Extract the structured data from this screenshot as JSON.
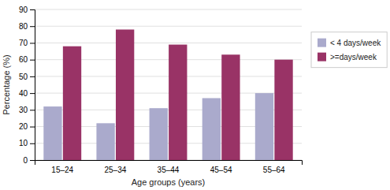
{
  "chart_data": {
    "type": "bar",
    "xlabel": "Age groups (years)",
    "ylabel": "Percentage (%)",
    "categories": [
      "15–24",
      "25–34",
      "35–44",
      "45–54",
      "55–64"
    ],
    "series": [
      {
        "name": "< 4 days/week",
        "color": "#aaaacc",
        "values": [
          32,
          22,
          31,
          37,
          40
        ]
      },
      {
        "name": ">=days/week",
        "color": "#993366",
        "values": [
          68,
          78,
          69,
          63,
          60
        ]
      }
    ],
    "ylim": [
      0,
      90
    ],
    "yticks": [
      0,
      10,
      20,
      30,
      40,
      50,
      60,
      70,
      80,
      90
    ],
    "grid": true,
    "legend": "right"
  }
}
